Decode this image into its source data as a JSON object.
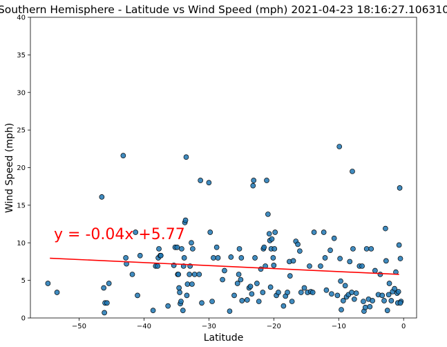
{
  "chart_data": {
    "type": "scatter",
    "title": "Southern Hemisphere - Latitude vs Wind Speed (mph) 2021-04-23 18:16:27.106310",
    "xlabel": "Latitude",
    "ylabel": "Wind Speed (mph)",
    "xlim": [
      -57.5,
      2
    ],
    "ylim": [
      0,
      40
    ],
    "xticks": [
      -50,
      -40,
      -30,
      -20,
      -10,
      0
    ],
    "yticks": [
      0,
      5,
      10,
      15,
      20,
      25,
      30,
      35,
      40
    ],
    "xtick_labels": [
      "−50",
      "−40",
      "−30",
      "−20",
      "−10",
      "0"
    ],
    "ytick_labels": [
      "0",
      "5",
      "10",
      "15",
      "20",
      "25",
      "30",
      "35",
      "40"
    ],
    "grid": false,
    "marker_color": "#1f77b4",
    "regression": {
      "slope": -0.04,
      "intercept": 5.77,
      "x_range": [
        -54.5,
        -0.7
      ],
      "equation_label": "y = -0.04x +5.77",
      "color": "#ff0000"
    },
    "points": [
      [
        -54.8,
        4.6
      ],
      [
        -53.4,
        3.4
      ],
      [
        -46.5,
        16.1
      ],
      [
        -46.2,
        4.0
      ],
      [
        -46.0,
        2.0
      ],
      [
        -45.7,
        2.0
      ],
      [
        -45.4,
        4.6
      ],
      [
        -46.1,
        0.7
      ],
      [
        -43.2,
        21.6
      ],
      [
        -42.8,
        8.0
      ],
      [
        -42.7,
        7.2
      ],
      [
        -41.8,
        5.8
      ],
      [
        -41.3,
        11.4
      ],
      [
        -41.0,
        3.0
      ],
      [
        -40.6,
        8.3
      ],
      [
        -38.6,
        1.0
      ],
      [
        -38.2,
        6.9
      ],
      [
        -37.9,
        6.9
      ],
      [
        -37.8,
        8.0
      ],
      [
        -37.7,
        9.2
      ],
      [
        -37.5,
        8.3
      ],
      [
        -37.4,
        8.3
      ],
      [
        -36.3,
        1.6
      ],
      [
        -35.4,
        7.0
      ],
      [
        -35.2,
        9.4
      ],
      [
        -34.9,
        9.4
      ],
      [
        -34.8,
        5.8
      ],
      [
        -34.7,
        5.8
      ],
      [
        -34.6,
        4.0
      ],
      [
        -34.5,
        3.4
      ],
      [
        -34.4,
        1.9
      ],
      [
        -34.3,
        2.2
      ],
      [
        -34.2,
        9.2
      ],
      [
        -34.0,
        1.0
      ],
      [
        -33.9,
        6.9
      ],
      [
        -33.8,
        8.0
      ],
      [
        -33.7,
        12.7
      ],
      [
        -33.6,
        13.0
      ],
      [
        -33.5,
        21.4
      ],
      [
        -33.4,
        3.0
      ],
      [
        -33.3,
        4.5
      ],
      [
        -33.0,
        5.8
      ],
      [
        -32.9,
        6.9
      ],
      [
        -32.7,
        10.0
      ],
      [
        -32.6,
        4.5
      ],
      [
        -32.5,
        9.2
      ],
      [
        -32.2,
        5.8
      ],
      [
        -31.5,
        5.8
      ],
      [
        -31.3,
        18.3
      ],
      [
        -31.1,
        2.0
      ],
      [
        -30.0,
        18.0
      ],
      [
        -29.8,
        11.4
      ],
      [
        -29.5,
        2.2
      ],
      [
        -29.3,
        8.0
      ],
      [
        -28.8,
        9.4
      ],
      [
        -28.6,
        8.0
      ],
      [
        -27.9,
        5.1
      ],
      [
        -27.6,
        6.3
      ],
      [
        -26.8,
        0.9
      ],
      [
        -26.6,
        8.1
      ],
      [
        -26.1,
        3.0
      ],
      [
        -25.6,
        4.6
      ],
      [
        -25.4,
        5.8
      ],
      [
        -25.3,
        9.2
      ],
      [
        -25.1,
        5.1
      ],
      [
        -25.0,
        8.0
      ],
      [
        -24.9,
        2.3
      ],
      [
        -24.1,
        2.4
      ],
      [
        -23.8,
        4.0
      ],
      [
        -23.6,
        4.2
      ],
      [
        -23.4,
        3.2
      ],
      [
        -23.2,
        17.6
      ],
      [
        -23.1,
        18.3
      ],
      [
        -22.9,
        8.0
      ],
      [
        -22.6,
        4.6
      ],
      [
        -22.3,
        2.2
      ],
      [
        -22.0,
        6.5
      ],
      [
        -21.7,
        3.4
      ],
      [
        -21.6,
        9.2
      ],
      [
        -21.5,
        9.4
      ],
      [
        -21.3,
        6.9
      ],
      [
        -21.1,
        18.3
      ],
      [
        -20.9,
        13.8
      ],
      [
        -20.7,
        11.2
      ],
      [
        -20.6,
        10.3
      ],
      [
        -20.5,
        4.1
      ],
      [
        -20.4,
        9.2
      ],
      [
        -20.3,
        10.5
      ],
      [
        -20.1,
        8.0
      ],
      [
        -20.0,
        7.0
      ],
      [
        -19.9,
        9.2
      ],
      [
        -19.8,
        11.4
      ],
      [
        -19.6,
        3.0
      ],
      [
        -19.3,
        3.4
      ],
      [
        -18.5,
        1.6
      ],
      [
        -18.2,
        2.9
      ],
      [
        -17.9,
        3.4
      ],
      [
        -17.6,
        7.5
      ],
      [
        -17.5,
        5.6
      ],
      [
        -17.2,
        2.2
      ],
      [
        -17.0,
        7.6
      ],
      [
        -16.6,
        10.2
      ],
      [
        -16.3,
        9.8
      ],
      [
        -16.0,
        8.9
      ],
      [
        -15.8,
        3.4
      ],
      [
        -15.3,
        4.0
      ],
      [
        -14.8,
        3.4
      ],
      [
        -14.5,
        6.9
      ],
      [
        -14.3,
        3.5
      ],
      [
        -14.0,
        3.4
      ],
      [
        -13.8,
        11.4
      ],
      [
        -12.8,
        6.9
      ],
      [
        -12.3,
        11.4
      ],
      [
        -12.1,
        8.0
      ],
      [
        -11.9,
        3.7
      ],
      [
        -11.3,
        9.0
      ],
      [
        -11.1,
        3.2
      ],
      [
        -10.7,
        10.6
      ],
      [
        -10.2,
        3.0
      ],
      [
        -9.9,
        22.8
      ],
      [
        -9.8,
        7.9
      ],
      [
        -9.7,
        4.9
      ],
      [
        -9.6,
        1.1
      ],
      [
        -9.3,
        2.3
      ],
      [
        -9.0,
        4.3
      ],
      [
        -8.8,
        2.8
      ],
      [
        -8.5,
        3.1
      ],
      [
        -8.3,
        7.5
      ],
      [
        -8.0,
        3.4
      ],
      [
        -7.9,
        19.5
      ],
      [
        -7.8,
        9.2
      ],
      [
        -7.6,
        2.5
      ],
      [
        -7.3,
        3.3
      ],
      [
        -6.8,
        6.9
      ],
      [
        -6.4,
        6.9
      ],
      [
        -6.2,
        2.2
      ],
      [
        -6.1,
        0.9
      ],
      [
        -5.9,
        1.4
      ],
      [
        -5.7,
        9.2
      ],
      [
        -5.4,
        2.5
      ],
      [
        -5.2,
        1.5
      ],
      [
        -5.0,
        9.2
      ],
      [
        -4.8,
        2.3
      ],
      [
        -4.4,
        6.3
      ],
      [
        -3.9,
        3.1
      ],
      [
        -3.6,
        5.8
      ],
      [
        -3.3,
        3.0
      ],
      [
        -3.0,
        2.3
      ],
      [
        -2.8,
        11.9
      ],
      [
        -2.7,
        7.6
      ],
      [
        -2.5,
        1.0
      ],
      [
        -2.3,
        3.1
      ],
      [
        -2.2,
        4.6
      ],
      [
        -1.9,
        2.3
      ],
      [
        -1.7,
        3.5
      ],
      [
        -1.4,
        3.9
      ],
      [
        -1.2,
        6.1
      ],
      [
        -1.0,
        3.3
      ],
      [
        -0.9,
        2.0
      ],
      [
        -0.8,
        3.5
      ],
      [
        -0.7,
        9.7
      ],
      [
        -0.6,
        17.3
      ],
      [
        -0.5,
        7.9
      ],
      [
        -0.4,
        2.2
      ],
      [
        -0.5,
        2.0
      ]
    ]
  }
}
